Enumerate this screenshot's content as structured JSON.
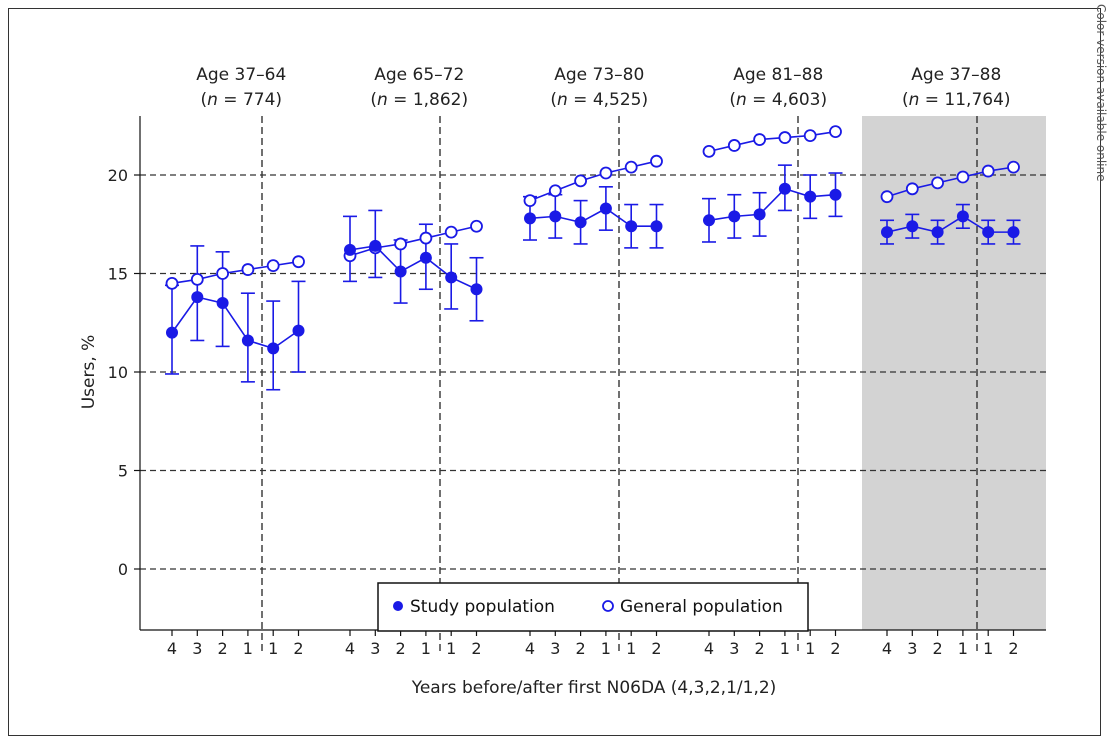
{
  "side_note": "Color version available online",
  "chart_data": {
    "type": "line",
    "ylabel": "Users, %",
    "xlabel": "Years before/after first N06DA (4,3,2,1/1,2)",
    "ylim": [
      -3,
      23
    ],
    "yticks": [
      0,
      5,
      10,
      15,
      20
    ],
    "grid": "horizontal dashed at y ticks",
    "legend_position": "bottom-center",
    "colors": {
      "series": "#1a1ae6",
      "grid": "#333333",
      "highlight_panel": "#d3d3d3"
    },
    "x_tick_labels": [
      "4",
      "3",
      "2",
      "1",
      "1",
      "2"
    ],
    "series_names": {
      "study": "Study population",
      "general": "General population"
    },
    "panels": [
      {
        "title": "Age 37–64",
        "n_prefix": "(",
        "n_var": "n",
        "n_text": " = 774)",
        "study": [
          12.0,
          13.8,
          13.5,
          11.6,
          11.2,
          12.1
        ],
        "study_ci_low": [
          9.9,
          11.6,
          11.3,
          9.5,
          9.1,
          10.0
        ],
        "study_ci_high": [
          14.4,
          16.4,
          16.1,
          14.0,
          13.6,
          14.6
        ],
        "general": [
          14.5,
          14.7,
          15.0,
          15.2,
          15.4,
          15.6
        ]
      },
      {
        "title": "Age 65–72",
        "n_prefix": "(",
        "n_var": "n",
        "n_text": " = 1,862)",
        "study": [
          16.2,
          16.4,
          15.1,
          15.8,
          14.8,
          14.2
        ],
        "study_ci_low": [
          14.6,
          14.8,
          13.5,
          14.2,
          13.2,
          12.6
        ],
        "study_ci_high": [
          17.9,
          18.2,
          16.7,
          17.5,
          16.5,
          15.8
        ],
        "general": [
          15.9,
          16.3,
          16.5,
          16.8,
          17.1,
          17.4
        ]
      },
      {
        "title": "Age 73–80",
        "n_prefix": "(",
        "n_var": "n",
        "n_text": " = 4,525)",
        "study": [
          17.8,
          17.9,
          17.6,
          18.3,
          17.4,
          17.4
        ],
        "study_ci_low": [
          16.7,
          16.8,
          16.5,
          17.2,
          16.3,
          16.3
        ],
        "study_ci_high": [
          18.9,
          19.0,
          18.7,
          19.4,
          18.5,
          18.5
        ],
        "general": [
          18.7,
          19.2,
          19.7,
          20.1,
          20.4,
          20.7
        ]
      },
      {
        "title": "Age 81–88",
        "n_prefix": "(",
        "n_var": "n",
        "n_text": " = 4,603)",
        "study": [
          17.7,
          17.9,
          18.0,
          19.3,
          18.9,
          19.0
        ],
        "study_ci_low": [
          16.6,
          16.8,
          16.9,
          18.2,
          17.8,
          17.9
        ],
        "study_ci_high": [
          18.8,
          19.0,
          19.1,
          20.5,
          20.0,
          20.1
        ],
        "general": [
          21.2,
          21.5,
          21.8,
          21.9,
          22.0,
          22.2
        ]
      },
      {
        "title": "Age 37–88",
        "n_prefix": "(",
        "n_var": "n",
        "n_text": " = 11,764)",
        "highlighted": true,
        "study": [
          17.1,
          17.4,
          17.1,
          17.9,
          17.1,
          17.1
        ],
        "study_ci_low": [
          16.5,
          16.8,
          16.5,
          17.3,
          16.5,
          16.5
        ],
        "study_ci_high": [
          17.7,
          18.0,
          17.7,
          18.5,
          17.7,
          17.7
        ],
        "general": [
          18.9,
          19.3,
          19.6,
          19.9,
          20.2,
          20.4
        ]
      }
    ]
  }
}
